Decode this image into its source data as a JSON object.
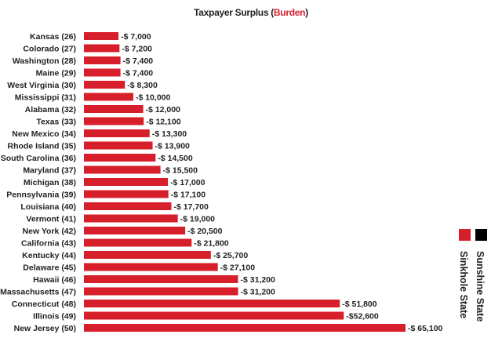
{
  "chart_data": {
    "type": "bar",
    "orientation": "horizontal",
    "title": "Taxpayer Surplus (Burden)",
    "title_parts": {
      "main": "Taxpayer Surplus (",
      "highlight": "Burden",
      "end": ")"
    },
    "categories": [
      "Kansas (26)",
      "Colorado (27)",
      "Washington (28)",
      "Maine (29)",
      "West Virginia (30)",
      "Mississippi (31)",
      "Alabama (32)",
      "Texas (33)",
      "New Mexico (34)",
      "Rhode Island (35)",
      "South Carolina (36)",
      "Maryland (37)",
      "Michigan (38)",
      "Pennsylvania (39)",
      "Louisiana (40)",
      "Vermont (41)",
      "New York (42)",
      "California (43)",
      "Kentucky (44)",
      "Delaware (45)",
      "Hawaii (46)",
      "Massachusetts (47)",
      "Connecticut (48)",
      "Illinois (49)",
      "New Jersey (50)"
    ],
    "values": [
      -7000,
      -7200,
      -7400,
      -7400,
      -8300,
      -10000,
      -12000,
      -12100,
      -13300,
      -13900,
      -14500,
      -15500,
      -17000,
      -17100,
      -17700,
      -19000,
      -20500,
      -21800,
      -25700,
      -27100,
      -31200,
      -31200,
      -51800,
      -52600,
      -65100
    ],
    "value_labels": [
      "-$ 7,000",
      "-$ 7,200",
      "-$ 7,400",
      "-$ 7,400",
      "-$ 8,300",
      "-$ 10,000",
      "-$ 12,000",
      "-$ 12,100",
      "-$ 13,300",
      "-$ 13,900",
      "-$ 14,500",
      "-$ 15,500",
      "-$ 17,000",
      "-$ 17,100",
      "-$ 17,700",
      "-$ 19,000",
      "-$ 20,500",
      "-$ 21,800",
      "-$ 25,700",
      "-$ 27,100",
      "-$ 31,200",
      "-$ 31,200",
      "-$ 51,800",
      "-$52,600",
      "-$ 65,100"
    ],
    "legend": [
      {
        "label": "Sinkhole State",
        "color": "#d71f2b"
      },
      {
        "label": "Sunshine State",
        "color": "#000000"
      }
    ],
    "legend_placement": "bottom-right",
    "bar_color": "#d71f2b",
    "grid": false
  }
}
